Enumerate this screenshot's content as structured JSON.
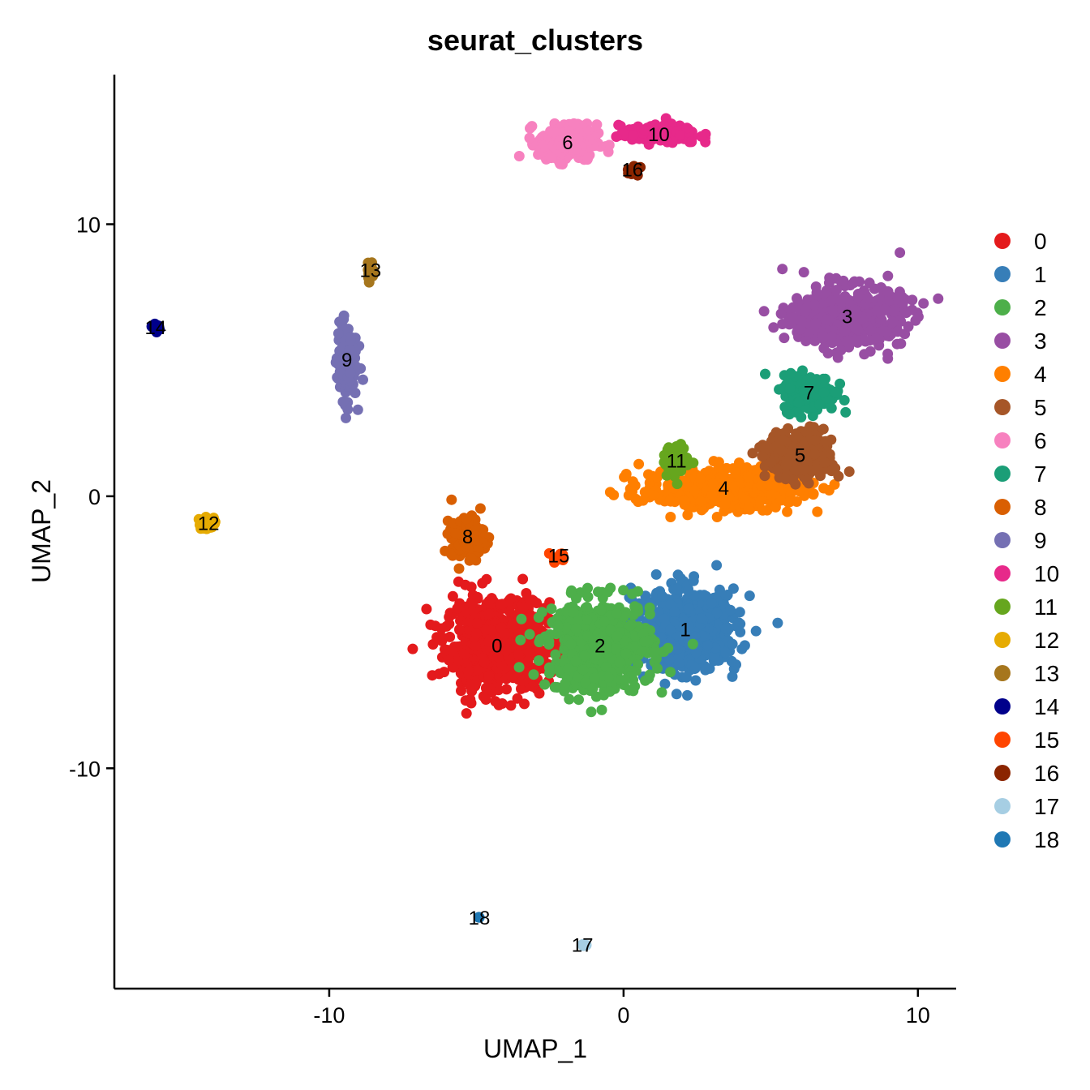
{
  "chart_data": {
    "type": "scatter",
    "title": "seurat_clusters",
    "xlabel": "UMAP_1",
    "ylabel": "UMAP_2",
    "xlim": [
      -17.3,
      11.3
    ],
    "ylim": [
      -18.1,
      15.5
    ],
    "xticks": [
      -10,
      0,
      10
    ],
    "yticks": [
      10,
      0,
      -10
    ],
    "grid": false,
    "legend_position": "right",
    "clusters": [
      {
        "name": "0",
        "color": "#E41A1C",
        "label_xy": [
          -4.3,
          -5.5
        ],
        "spread": [
          1.6,
          1.5
        ],
        "n": 700
      },
      {
        "name": "1",
        "color": "#377EB8",
        "label_xy": [
          2.1,
          -4.9
        ],
        "spread": [
          1.6,
          1.3
        ],
        "n": 650
      },
      {
        "name": "2",
        "color": "#4DAF4A",
        "label_xy": [
          -0.8,
          -5.5
        ],
        "spread": [
          1.6,
          1.5
        ],
        "n": 600
      },
      {
        "name": "3",
        "color": "#984EA3",
        "label_xy": [
          7.6,
          6.6
        ],
        "spread": [
          1.7,
          1.0
        ],
        "n": 500
      },
      {
        "name": "4",
        "color": "#FF7F00",
        "label_xy": [
          3.4,
          0.3
        ],
        "spread": [
          2.5,
          0.7
        ],
        "n": 450
      },
      {
        "name": "5",
        "color": "#A65628",
        "label_xy": [
          6.0,
          1.5
        ],
        "spread": [
          1.0,
          0.8
        ],
        "n": 320
      },
      {
        "name": "6",
        "color": "#F781BF",
        "label_xy": [
          -1.9,
          13.0
        ],
        "spread": [
          0.9,
          0.6
        ],
        "n": 250
      },
      {
        "name": "7",
        "color": "#1B9E77",
        "label_xy": [
          6.3,
          3.8
        ],
        "spread": [
          0.8,
          0.6
        ],
        "n": 220
      },
      {
        "name": "8",
        "color": "#D95F02",
        "label_xy": [
          -5.3,
          -1.5
        ],
        "spread": [
          0.5,
          0.7
        ],
        "n": 170
      },
      {
        "name": "9",
        "color": "#7570B3",
        "label_xy": [
          -9.4,
          5.0
        ],
        "spread": [
          0.3,
          1.3
        ],
        "n": 150
      },
      {
        "name": "10",
        "color": "#E7298A",
        "label_xy": [
          1.2,
          13.3
        ],
        "spread": [
          1.2,
          0.3
        ],
        "n": 140
      },
      {
        "name": "11",
        "color": "#66A61E",
        "label_xy": [
          1.8,
          1.3
        ],
        "spread": [
          0.4,
          0.5
        ],
        "n": 70
      },
      {
        "name": "12",
        "color": "#E6AB02",
        "label_xy": [
          -14.1,
          -1.0
        ],
        "spread": [
          0.3,
          0.2
        ],
        "n": 35
      },
      {
        "name": "13",
        "color": "#A6761D",
        "label_xy": [
          -8.6,
          8.3
        ],
        "spread": [
          0.1,
          0.4
        ],
        "n": 25
      },
      {
        "name": "14",
        "color": "#00008B",
        "label_xy": [
          -15.9,
          6.2
        ],
        "spread": [
          0.1,
          0.1
        ],
        "n": 15
      },
      {
        "name": "15",
        "color": "#FF4500",
        "label_xy": [
          -2.2,
          -2.2
        ],
        "spread": [
          0.2,
          0.2
        ],
        "n": 14
      },
      {
        "name": "16",
        "color": "#8B2500",
        "label_xy": [
          0.3,
          12.0
        ],
        "spread": [
          0.2,
          0.2
        ],
        "n": 12
      },
      {
        "name": "17",
        "color": "#A6CEE3",
        "label_xy": [
          -1.4,
          -16.5
        ],
        "spread": [
          0.1,
          0.05
        ],
        "n": 4
      },
      {
        "name": "18",
        "color": "#1F78B4",
        "label_xy": [
          -4.9,
          -15.5
        ],
        "spread": [
          0.05,
          0.05
        ],
        "n": 3
      }
    ]
  }
}
